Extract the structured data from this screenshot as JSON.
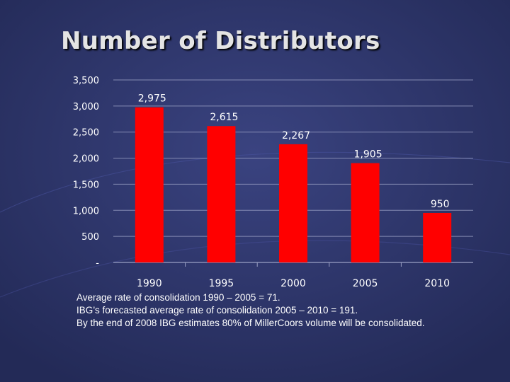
{
  "slide": {
    "title": "Number of Distributors",
    "notes": [
      "Average rate of consolidation 1990 – 2005 = 71.",
      "IBG’s forecasted average rate of consolidation 2005 – 2010 = 191.",
      "By the end of 2008 IBG estimates 80% of MillerCoors volume will be consolidated."
    ]
  },
  "colors": {
    "background": "#2b3366",
    "bar": "#ff0000",
    "text": "#ffffff",
    "grid": "#9aa0c4"
  },
  "chart_data": {
    "type": "bar",
    "title": "",
    "xlabel": "",
    "ylabel": "",
    "categories": [
      "1990",
      "1995",
      "2000",
      "2005",
      "2010"
    ],
    "values": [
      2975,
      2615,
      2267,
      1905,
      950
    ],
    "data_labels": [
      "2,975",
      "2,615",
      "2,267",
      "1,905",
      "950"
    ],
    "ylim": [
      0,
      3500
    ],
    "yticks": [
      0,
      500,
      1000,
      1500,
      2000,
      2500,
      3000,
      3500
    ],
    "ytick_labels": [
      "-",
      "500",
      "1,000",
      "1,500",
      "2,000",
      "2,500",
      "3,000",
      "3,500"
    ],
    "grid": true,
    "legend": "none"
  }
}
